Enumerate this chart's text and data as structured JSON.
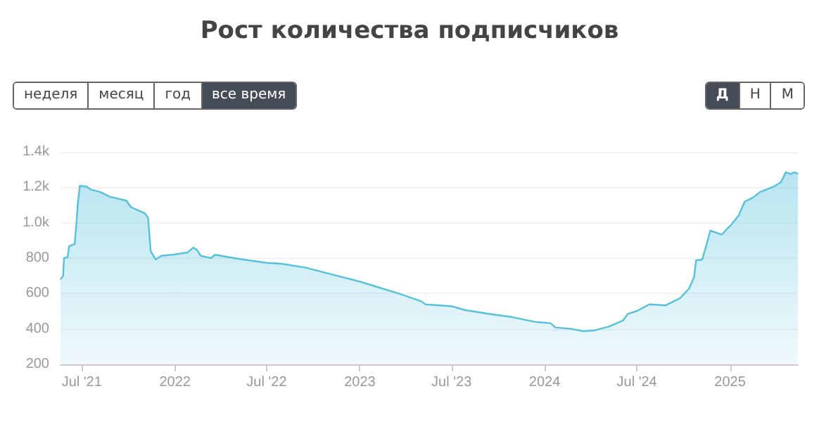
{
  "chart_data": {
    "type": "area",
    "title": "Рост количества подписчиков",
    "annotations": [
      "неделя",
      "месяц",
      "год",
      "все время",
      "Д",
      "Н",
      "М"
    ],
    "x": [
      "2021-05-20",
      "2021-05-25",
      "2021-05-27",
      "2021-06-03",
      "2021-06-06",
      "2021-06-17",
      "2021-06-20",
      "2021-06-23",
      "2021-06-27",
      "2021-07-10",
      "2021-07-19",
      "2021-08-07",
      "2021-08-25",
      "2021-09-27",
      "2021-10-06",
      "2021-11-03",
      "2021-11-09",
      "2021-11-14",
      "2021-11-24",
      "2021-12-05",
      "2022-01-01",
      "2022-01-26",
      "2022-02-06",
      "2022-02-13",
      "2022-02-21",
      "2022-03-13",
      "2022-03-21",
      "2022-05-08",
      "2022-07-01",
      "2022-07-30",
      "2022-09-15",
      "2022-11-01",
      "2023-01-01",
      "2023-02-01",
      "2023-03-19",
      "2023-05-03",
      "2023-05-10",
      "2023-07-01",
      "2023-07-27",
      "2023-09-12",
      "2023-10-28",
      "2023-12-13",
      "2024-01-13",
      "2024-01-22",
      "2024-02-23",
      "2024-03-17",
      "2024-04-09",
      "2024-05-07",
      "2024-06-04",
      "2024-06-13",
      "2024-07-01",
      "2024-07-26",
      "2024-08-27",
      "2024-09-24",
      "2024-10-12",
      "2024-10-22",
      "2024-10-26",
      "2024-11-07",
      "2024-11-14",
      "2024-11-23",
      "2024-12-16",
      "2024-12-27",
      "2025-01-01",
      "2025-01-18",
      "2025-01-30",
      "2025-02-15",
      "2025-03-01",
      "2025-03-29",
      "2025-04-11",
      "2025-04-21",
      "2025-04-30",
      "2025-05-09",
      "2025-05-15"
    ],
    "series": [
      {
        "color": "#56c1dc",
        "values": [
          680,
          699,
          800,
          805,
          867,
          880,
          979,
          1101,
          1208,
          1205,
          1187,
          1173,
          1147,
          1125,
          1088,
          1053,
          1027,
          840,
          792,
          813,
          821,
          832,
          859,
          848,
          813,
          800,
          819,
          795,
          773,
          768,
          747,
          712,
          667,
          640,
          600,
          555,
          539,
          528,
          507,
          485,
          467,
          440,
          432,
          408,
          400,
          387,
          392,
          413,
          448,
          485,
          501,
          539,
          533,
          573,
          627,
          693,
          787,
          792,
          859,
          955,
          933,
          968,
          981,
          1040,
          1120,
          1141,
          1173,
          1205,
          1227,
          1285,
          1275,
          1285,
          1275
        ]
      }
    ],
    "xlim": [
      "2021-05-20",
      "2025-05-15"
    ],
    "xticks": [
      {
        "value": "2021-07-01",
        "label": "Jul '21"
      },
      {
        "value": "2022-01-01",
        "label": "2022"
      },
      {
        "value": "2022-07-01",
        "label": "Jul '22"
      },
      {
        "value": "2023-01-01",
        "label": "2023"
      },
      {
        "value": "2023-07-01",
        "label": "Jul '23"
      },
      {
        "value": "2024-01-01",
        "label": "2024"
      },
      {
        "value": "2024-07-01",
        "label": "Jul '24"
      },
      {
        "value": "2025-01-01",
        "label": "2025"
      }
    ],
    "ylim": [
      200,
      1400
    ],
    "yticks": [
      200,
      400,
      600,
      800,
      {
        "value": 1000,
        "label": "1.0k"
      },
      {
        "value": 1200,
        "label": "1.2k"
      },
      {
        "value": 1400,
        "label": "1.4k"
      }
    ],
    "grid": "y",
    "marker": "none",
    "line_style": "solid"
  }
}
